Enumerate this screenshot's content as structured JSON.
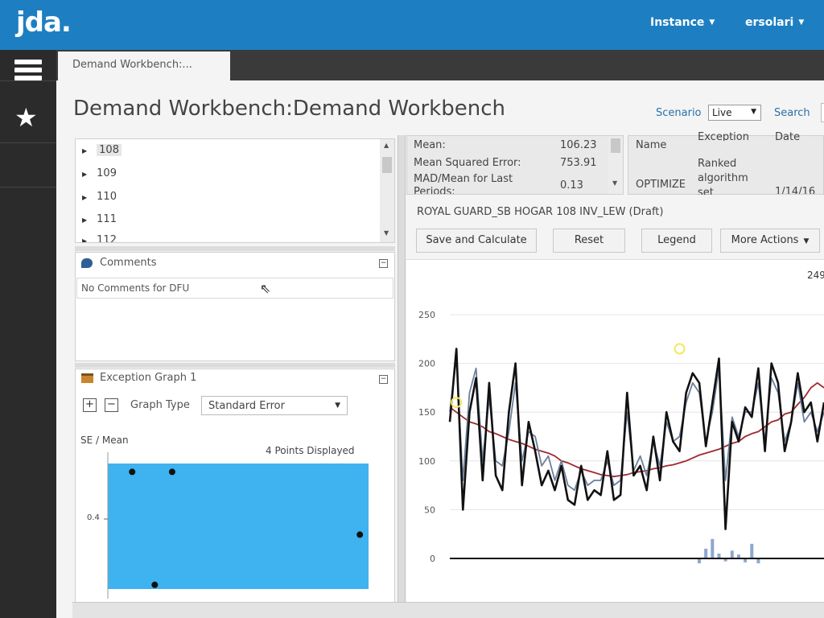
{
  "app": {
    "logo": "jda."
  },
  "topbar": {
    "instance_label": "Instance",
    "user_label": "ersolari"
  },
  "tab": {
    "label": "Demand Workbench:..."
  },
  "page": {
    "title": "Demand Workbench:Demand Workbench",
    "scenario_label": "Scenario",
    "scenario_value": "Live",
    "search_label": "Search"
  },
  "tree": {
    "items": [
      "108",
      "109",
      "110",
      "111",
      "112"
    ]
  },
  "comments": {
    "title": "Comments",
    "text": "No Comments for DFU"
  },
  "exception_graph": {
    "title": "Exception Graph 1",
    "graph_type_label": "Graph Type",
    "graph_type_value": "Standard Error",
    "plus_label": "+",
    "minus_label": "−"
  },
  "stats": {
    "rows": [
      {
        "label": "Mean:",
        "value": "106.23"
      },
      {
        "label": "Mean Squared Error:",
        "value": "753.91"
      },
      {
        "label": "MAD/Mean for Last",
        "value": "0.13"
      },
      {
        "label": "Periods:",
        "value": ""
      }
    ]
  },
  "name_panel": {
    "name_header": "Name",
    "exception_header": "Exception",
    "date_header": "Date",
    "row_name": "OPTIMIZE",
    "row_exception_line1": "Ranked",
    "row_exception_line2": "algorithm",
    "row_exception_line3": "set",
    "row_date": "1/14/16"
  },
  "dfu": {
    "title": "ROYAL GUARD_SB HOGAR 108 INV_LEW (Draft)"
  },
  "actions": {
    "save_calculate": "Save and Calculate",
    "reset": "Reset",
    "legend": "Legend",
    "more_actions": "More Actions"
  },
  "colors": {
    "brand": "#1d7fc2",
    "se_fill": "#3fb2f0",
    "rail": "#2b2b2b"
  },
  "chart_data": [
    {
      "type": "scatter",
      "title": "",
      "ylabel": "SE / Mean",
      "annotation": "4 Points Displayed",
      "y_tick_labels": [
        "0.4"
      ],
      "x_tick_labels": [
        "",
        "",
        "",
        "",
        ""
      ],
      "ylim": [
        0.25,
        0.55
      ],
      "x": [
        14,
        37,
        27,
        145
      ],
      "values": [
        0.53,
        0.53,
        0.26,
        0.38
      ],
      "xlim": [
        0,
        150
      ],
      "area_fill": "#3fb2f0"
    },
    {
      "type": "line",
      "title": "",
      "xlabel": "",
      "ylabel": "",
      "ylim": [
        0,
        250
      ],
      "y_ticks": [
        0,
        50,
        100,
        150,
        200,
        250
      ],
      "corner_label": "249",
      "grid": true,
      "series": [
        {
          "color": "#111111",
          "values": [
            140,
            215,
            50,
            150,
            185,
            80,
            180,
            85,
            70,
            150,
            200,
            75,
            140,
            110,
            75,
            90,
            70,
            95,
            60,
            55,
            95,
            60,
            70,
            65,
            110,
            60,
            65,
            170,
            85,
            95,
            70,
            125,
            80,
            150,
            120,
            110,
            170,
            190,
            180,
            115,
            160,
            205,
            30,
            140,
            120,
            155,
            145,
            195,
            110,
            200,
            180,
            110,
            140,
            190,
            150,
            160,
            120,
            160
          ]
        },
        {
          "color": "#6c7f9c",
          "values": [
            150,
            205,
            80,
            170,
            195,
            100,
            165,
            100,
            95,
            130,
            180,
            100,
            130,
            125,
            95,
            105,
            80,
            100,
            75,
            70,
            90,
            75,
            80,
            80,
            100,
            75,
            80,
            150,
            90,
            105,
            85,
            120,
            95,
            140,
            120,
            125,
            160,
            180,
            170,
            120,
            150,
            195,
            80,
            145,
            125,
            150,
            150,
            180,
            120,
            185,
            170,
            120,
            140,
            180,
            140,
            150,
            130,
            150
          ]
        },
        {
          "color": "#9e2a2f",
          "values": [
            155,
            150,
            145,
            140,
            138,
            135,
            130,
            128,
            125,
            122,
            120,
            118,
            115,
            112,
            110,
            108,
            105,
            100,
            98,
            95,
            92,
            90,
            88,
            86,
            85,
            84,
            85,
            86,
            88,
            89,
            90,
            92,
            93,
            95,
            96,
            98,
            100,
            103,
            106,
            108,
            110,
            112,
            115,
            118,
            120,
            125,
            128,
            130,
            135,
            140,
            142,
            148,
            150,
            158,
            165,
            175,
            180,
            175
          ]
        }
      ],
      "bars": [
        0,
        0,
        0,
        0,
        0,
        0,
        0,
        0,
        0,
        0,
        0,
        0,
        0,
        0,
        0,
        0,
        0,
        0,
        0,
        0,
        0,
        0,
        0,
        0,
        0,
        0,
        0,
        0,
        0,
        0,
        0,
        0,
        0,
        0,
        0,
        0,
        0,
        0,
        -5,
        10,
        20,
        5,
        -3,
        8,
        4,
        -4,
        15,
        -5,
        0,
        0,
        0,
        0,
        0,
        0,
        0,
        0,
        0,
        0
      ],
      "markers": [
        {
          "index": 1,
          "value": 160
        },
        {
          "index": 35,
          "value": 215
        }
      ]
    }
  ]
}
